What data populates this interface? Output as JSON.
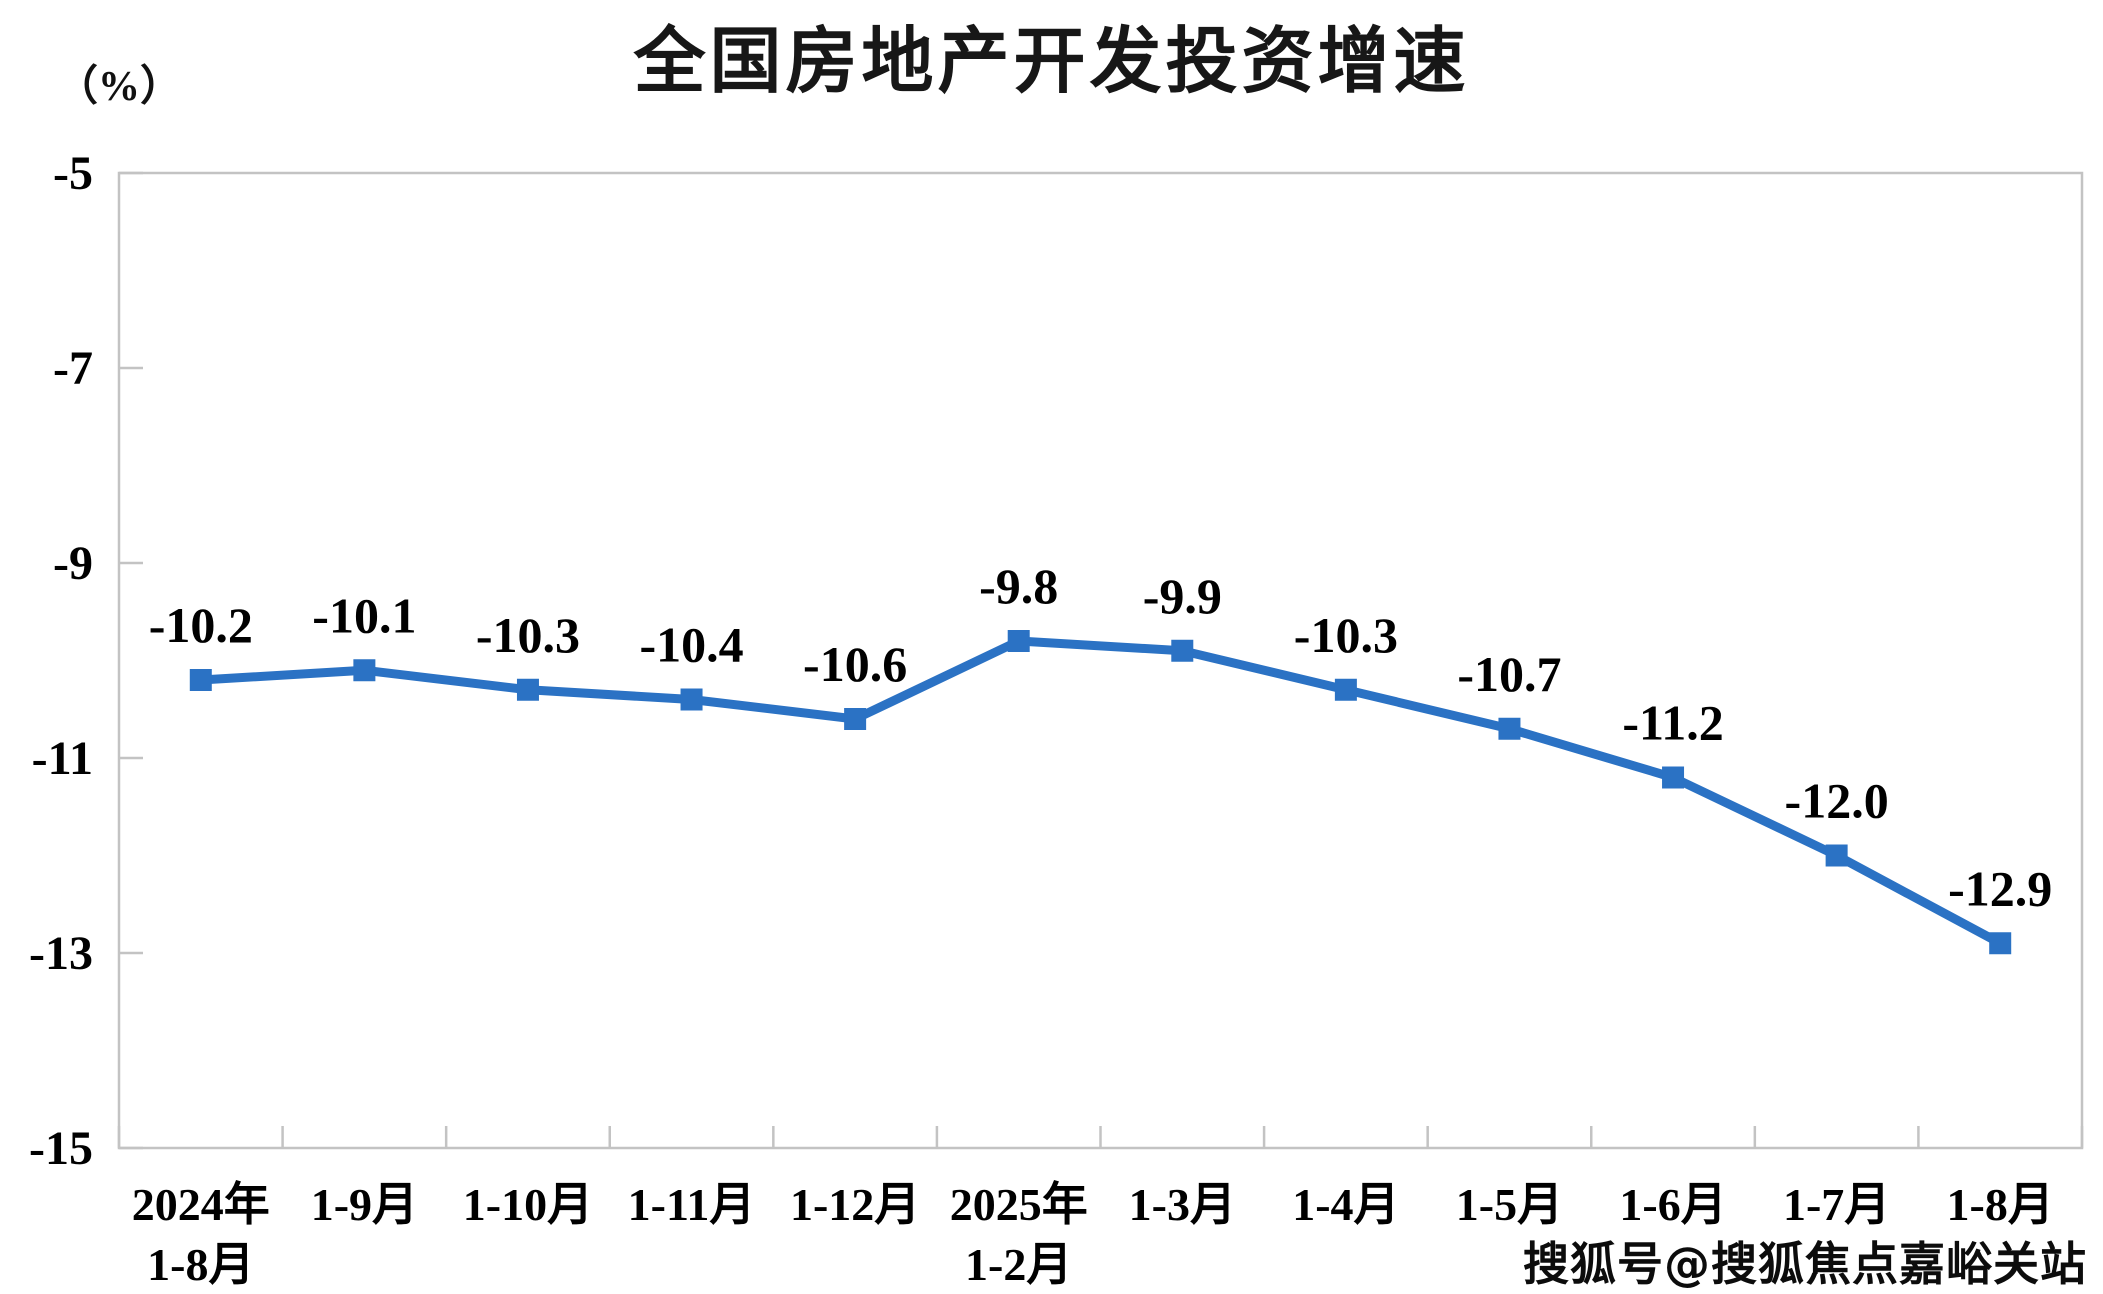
{
  "meta": {
    "background": "#ffffff"
  },
  "chart_data": {
    "type": "line",
    "title": "全国房地产开发投资增速",
    "unit_label": "（%）",
    "xlabel": "",
    "ylabel": "",
    "categories": [
      "2024年\n1-8月",
      "1-9月",
      "1-10月",
      "1-11月",
      "1-12月",
      "2025年\n1-2月",
      "1-3月",
      "1-4月",
      "1-5月",
      "1-6月",
      "1-7月",
      "1-8月"
    ],
    "series": [
      {
        "name": "全国房地产开发投资增速",
        "values": [
          -10.2,
          -10.1,
          -10.3,
          -10.4,
          -10.6,
          -9.8,
          -9.9,
          -10.3,
          -10.7,
          -11.2,
          -12.0,
          -12.9
        ],
        "point_labels": [
          "-10.2",
          "-10.1",
          "-10.3",
          "-10.4",
          "-10.6",
          "-9.8",
          "-9.9",
          "-10.3",
          "-10.7",
          "-11.2",
          "-12.0",
          "-12.9"
        ]
      }
    ],
    "ylim": [
      -15,
      -5
    ],
    "yticks": [
      -5,
      -7,
      -9,
      -11,
      -13,
      -15
    ],
    "ytick_labels": [
      "-5",
      "-7",
      "-9",
      "-11",
      "-13",
      "-15"
    ],
    "grid": false,
    "legend_position": "none",
    "marker_shape": "square",
    "colors": {
      "line": "#2B72C4",
      "marker": "#2B72C4",
      "axis": "#C3C3C3",
      "text": "#000000"
    }
  },
  "watermark": {
    "text": "搜狐号@搜狐焦点嘉峪关站"
  }
}
